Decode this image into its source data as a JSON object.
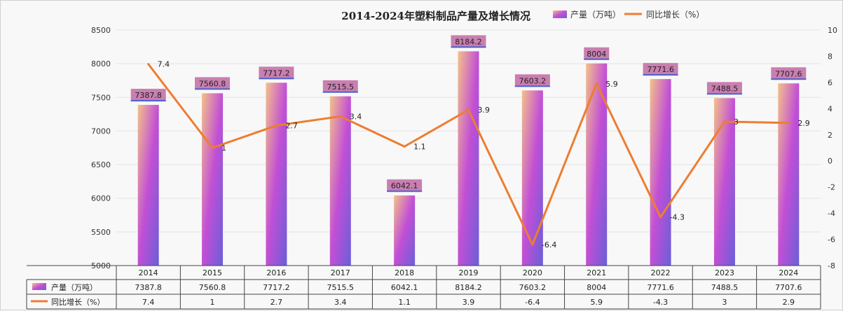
{
  "chart_data": {
    "type": "bar",
    "title": "2014-2024年塑料制品产量及增长情况",
    "categories": [
      "2014",
      "2015",
      "2016",
      "2017",
      "2018",
      "2019",
      "2020",
      "2021",
      "2022",
      "2023",
      "2024"
    ],
    "series": [
      {
        "name": "产量（万吨）",
        "type": "bar",
        "axis": "left",
        "values": [
          7387.8,
          7560.8,
          7717.2,
          7515.5,
          6042.1,
          8184.2,
          7603.2,
          8004,
          7771.6,
          7488.5,
          7707.6
        ],
        "labels": [
          "7387.8",
          "7560.8",
          "7717.2",
          "7515.5",
          "6042.1",
          "8184.2",
          "7603.2",
          "8004",
          "7771.6",
          "7488.5",
          "7707.6"
        ]
      },
      {
        "name": "同比增长（%）",
        "type": "line",
        "axis": "right",
        "values": [
          7.4,
          1,
          2.7,
          3.4,
          1.1,
          3.9,
          -6.4,
          5.9,
          -4.3,
          3,
          2.9
        ],
        "labels": [
          "7.4",
          "1",
          "2.7",
          "3.4",
          "1.1",
          "3.9",
          "-6.4",
          "5.9",
          "-4.3",
          "3",
          "2.9"
        ]
      }
    ],
    "ylim": [
      5000,
      8500
    ],
    "yticks": [
      "5000",
      "5500",
      "6000",
      "6500",
      "7000",
      "7500",
      "8000",
      "8500"
    ],
    "y2lim": [
      -8,
      10
    ],
    "y2ticks": [
      "-8",
      "-6",
      "-4",
      "-2",
      "0",
      "2",
      "4",
      "6",
      "8",
      "10"
    ],
    "legend": "top",
    "grid": true,
    "data_table": true,
    "colors": {
      "bar_top": "#f3c18a",
      "bar_mid": "#c24fd6",
      "bar_bottom": "#6a5fd8",
      "line": "#ed7d31",
      "label_bg": "#c97fb0",
      "label_line": "#4a5fd0"
    }
  }
}
